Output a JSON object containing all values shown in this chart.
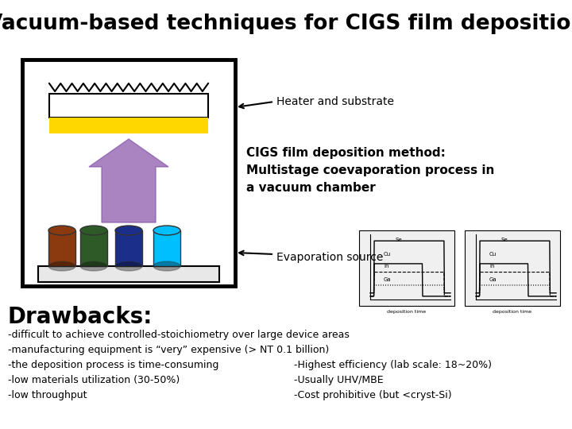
{
  "title": "Vacuum-based techniques for CIGS film deposition",
  "title_fontsize": 19,
  "drawbacks_title": "Drawbacks:",
  "drawbacks_title_fontsize": 20,
  "drawbacks_left": [
    "-difficult to achieve controlled-stoichiometry over large device areas",
    "-manufacturing equipment is “very” expensive (> NT 0.1 billion)",
    "-the deposition process is time-consuming",
    "-low materials utilization (30-50%)",
    "-low throughput"
  ],
  "drawbacks_right": [
    "-Highest efficiency (lab scale: 18~20%)",
    "-Usually UHV/MBE",
    "-Cost prohibitive (but <cryst-Si)"
  ],
  "label_heater": "Heater and substrate",
  "label_evap": "Evaporation source",
  "cigs_text_line1": "CIGS film deposition method:",
  "cigs_text_line2": "Multistage coevaporation process in",
  "cigs_text_line3": "a vacuum chamber",
  "background_color": "#ffffff",
  "box_color": "#000000",
  "substrate_yellow_color": "#FFD700",
  "arrow_purple_color": "#8855AA",
  "cylinder_colors": [
    "#8B3A0F",
    "#2D5A27",
    "#1B2F8A",
    "#00BFFF"
  ],
  "base_color": "#e8e8e8",
  "text_color": "#000000"
}
